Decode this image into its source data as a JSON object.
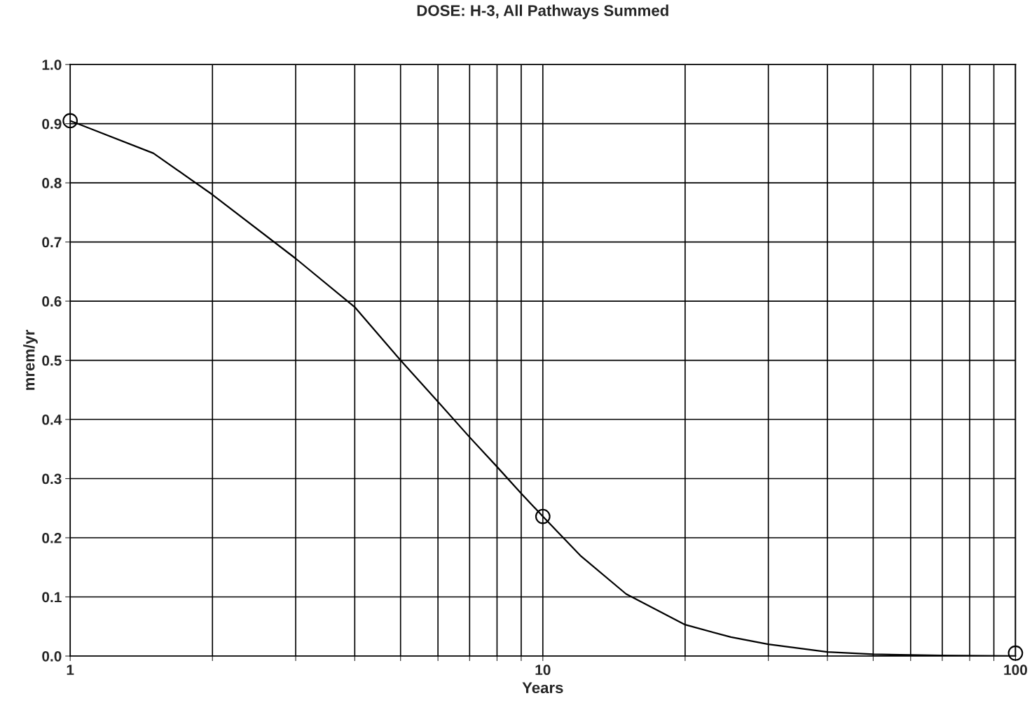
{
  "chart_data": {
    "type": "line",
    "title": "DOSE: H-3, All Pathways Summed",
    "xlabel": "Years",
    "ylabel": "mrem/yr",
    "log": "x",
    "grid": true,
    "legend": false,
    "xlim": [
      1,
      100
    ],
    "ylim": [
      0,
      1.0
    ],
    "xticks": [
      1,
      {
        "value": 2,
        "label": null
      },
      {
        "value": 3,
        "label": null
      },
      {
        "value": 4,
        "label": null
      },
      {
        "value": 5,
        "label": null
      },
      {
        "value": 6,
        "label": null
      },
      {
        "value": 7,
        "label": null
      },
      {
        "value": 8,
        "label": null
      },
      {
        "value": 9,
        "label": null
      },
      10,
      {
        "value": 20,
        "label": null
      },
      {
        "value": 30,
        "label": null
      },
      {
        "value": 40,
        "label": null
      },
      {
        "value": 50,
        "label": null
      },
      {
        "value": 60,
        "label": null
      },
      {
        "value": 70,
        "label": null
      },
      {
        "value": 80,
        "label": null
      },
      {
        "value": 90,
        "label": null
      },
      100
    ],
    "yticks": [
      {
        "value": 0,
        "label": "0.0"
      },
      0.1,
      0.2,
      0.3,
      0.4,
      0.5,
      0.6,
      0.7,
      0.8,
      0.9,
      {
        "value": 1,
        "label": "1.0"
      }
    ],
    "series": [
      {
        "marker": "none",
        "line_style": "solid",
        "color": "#000000",
        "x": [
          1,
          1.5,
          2,
          3,
          4,
          5,
          6,
          7,
          8,
          9,
          10,
          12,
          15,
          20,
          25,
          30,
          40,
          50,
          70,
          100
        ],
        "values": [
          0.905,
          0.85,
          0.78,
          0.672,
          0.59,
          0.5,
          0.43,
          0.37,
          0.32,
          0.275,
          0.236,
          0.17,
          0.105,
          0.053,
          0.032,
          0.02,
          0.007,
          0.003,
          0.001,
          0.0
        ]
      },
      {
        "type": "scatter",
        "marker": "circle",
        "color": "#000000",
        "x": [
          1,
          10,
          100
        ],
        "values": [
          0.905,
          0.236,
          0.005
        ]
      }
    ]
  }
}
